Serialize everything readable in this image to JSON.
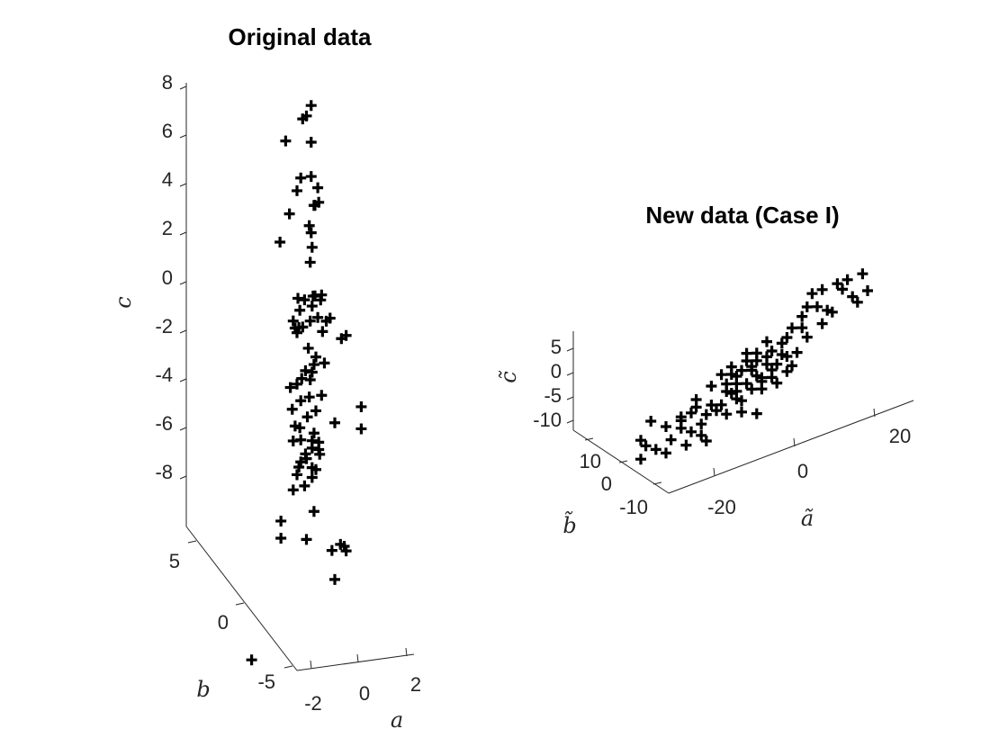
{
  "chart_data": [
    {
      "type": "scatter",
      "title": "Original data",
      "xlabel": "a",
      "ylabel": "b",
      "zlabel": "c",
      "view": "3d",
      "marker": "plus",
      "marker_color": "#000000",
      "grid": false,
      "z_ticks": [
        "8",
        "6",
        "4",
        "2",
        "0",
        "-2",
        "-4",
        "-6",
        "-8"
      ],
      "y_ticks": [
        "5",
        "0",
        "-5"
      ],
      "x_ticks": [
        "-2",
        "0",
        "2"
      ],
      "points_zb": [
        [
          7.3,
          1.5
        ],
        [
          6.9,
          1.0
        ],
        [
          6.8,
          0.6
        ],
        [
          5.8,
          1.5
        ],
        [
          6.0,
          -1.2
        ],
        [
          4.4,
          1.5
        ],
        [
          4.4,
          0.4
        ],
        [
          3.9,
          0.0
        ],
        [
          3.9,
          2.2
        ],
        [
          3.3,
          2.3
        ],
        [
          3.2,
          1.8
        ],
        [
          3.2,
          1.9
        ],
        [
          3.0,
          -0.8
        ],
        [
          2.4,
          1.3
        ],
        [
          2.1,
          1.5
        ],
        [
          1.9,
          -1.8
        ],
        [
          1.5,
          1.6
        ],
        [
          0.9,
          1.4
        ],
        [
          -0.5,
          0.1
        ],
        [
          -1.4,
          -0.4
        ],
        [
          -0.5,
          2.6
        ],
        [
          -0.5,
          1.9
        ],
        [
          -0.7,
          2.5
        ],
        [
          -0.5,
          1.7
        ],
        [
          -0.6,
          0.8
        ],
        [
          -0.9,
          1.6
        ],
        [
          -1.0,
          0.3
        ],
        [
          -1.4,
          2.2
        ],
        [
          -1.5,
          3.5
        ],
        [
          -1.6,
          3.1
        ],
        [
          -1.5,
          1.4
        ],
        [
          -1.7,
          0.6
        ],
        [
          -1.7,
          0.2
        ],
        [
          -1.7,
          -0.2
        ],
        [
          -1.9,
          0.0
        ],
        [
          -2.3,
          5.2
        ],
        [
          -2.4,
          4.7
        ],
        [
          -2.0,
          2.7
        ],
        [
          -2.6,
          1.2
        ],
        [
          -3.0,
          2.0
        ],
        [
          -3.3,
          2.9
        ],
        [
          -3.3,
          1.8
        ],
        [
          -3.6,
          1.6
        ],
        [
          -3.5,
          0.9
        ],
        [
          -3.8,
          0.5
        ],
        [
          -3.9,
          1.4
        ],
        [
          -4.0,
          0.0
        ],
        [
          -4.1,
          -0.7
        ],
        [
          -4.6,
          2.6
        ],
        [
          -4.7,
          0.4
        ],
        [
          -4.6,
          1.3
        ],
        [
          -5.0,
          -0.5
        ],
        [
          -5.2,
          2.0
        ],
        [
          -5.4,
          1.1
        ],
        [
          -5.7,
          -0.2
        ],
        [
          -5.8,
          0.3
        ],
        [
          -6.1,
          1.8
        ],
        [
          -6.3,
          0.4
        ],
        [
          -6.4,
          1.6
        ],
        [
          -5.8,
          4.0
        ],
        [
          -5.3,
          6.8
        ],
        [
          -6.2,
          6.8
        ],
        [
          -6.3,
          -0.4
        ],
        [
          -6.5,
          2.3
        ],
        [
          -6.7,
          1.6
        ],
        [
          -6.8,
          2.3
        ],
        [
          -7.0,
          2.4
        ],
        [
          -6.9,
          0.9
        ],
        [
          -7.2,
          0.4
        ],
        [
          -7.1,
          1.0
        ],
        [
          -7.4,
          0.2
        ],
        [
          -7.5,
          1.6
        ],
        [
          -7.7,
          0.0
        ],
        [
          -7.9,
          1.6
        ],
        [
          -8.2,
          0.8
        ],
        [
          -8.3,
          -0.4
        ],
        [
          -7.6,
          2.0
        ],
        [
          -9.3,
          1.8
        ],
        [
          -9.5,
          -1.7
        ],
        [
          -10.4,
          1.0
        ],
        [
          -10.2,
          -1.7
        ],
        [
          -10.8,
          4.6
        ],
        [
          -11.0,
          3.7
        ],
        [
          -11.1,
          5.2
        ],
        [
          -10.9,
          5.0
        ],
        [
          -12.2,
          4.0
        ],
        [
          -15.0,
          -4.8
        ]
      ]
    },
    {
      "type": "scatter",
      "title": "New data (Case I)",
      "xlabel": "ã",
      "ylabel": "b̃",
      "zlabel": "c̃",
      "view": "3d",
      "marker": "plus",
      "marker_color": "#000000",
      "grid": false,
      "z_ticks": [
        "5",
        "0",
        "-5",
        "-10"
      ],
      "y_ticks": [
        "10",
        "0",
        "-10"
      ],
      "x_ticks": [
        "-20",
        "0",
        "20"
      ],
      "points_ac": [
        [
          -18,
          -2
        ],
        [
          -20,
          -6
        ],
        [
          -15,
          -5
        ],
        [
          -19,
          -8
        ],
        [
          -14,
          -9
        ],
        [
          -12,
          -7
        ],
        [
          -17,
          -10
        ],
        [
          -11,
          -12
        ],
        [
          -15,
          -12
        ],
        [
          -10,
          -9
        ],
        [
          -8,
          -8
        ],
        [
          -6,
          -4
        ],
        [
          -12,
          -5
        ],
        [
          -9,
          -3
        ],
        [
          -7,
          -6
        ],
        [
          -5,
          -6
        ],
        [
          -3,
          -8
        ],
        [
          -4,
          -5
        ],
        [
          -2,
          -3
        ],
        [
          -1,
          -5
        ],
        [
          0,
          -6
        ],
        [
          -3,
          0
        ],
        [
          -1,
          -1
        ],
        [
          -2,
          2
        ],
        [
          -3,
          -2
        ],
        [
          -1,
          -3
        ],
        [
          1,
          -2
        ],
        [
          2,
          1
        ],
        [
          3,
          -1
        ],
        [
          4,
          -3
        ],
        [
          0,
          2
        ],
        [
          -6,
          1
        ],
        [
          -2,
          4
        ],
        [
          1,
          4
        ],
        [
          3,
          3
        ],
        [
          5,
          3
        ],
        [
          2,
          -4
        ],
        [
          4,
          -2
        ],
        [
          6,
          -3
        ],
        [
          2,
          2
        ],
        [
          5,
          1
        ],
        [
          7,
          0
        ],
        [
          -1,
          1
        ],
        [
          3,
          5
        ],
        [
          6,
          4
        ],
        [
          8,
          5
        ],
        [
          4,
          -5
        ],
        [
          7,
          -5
        ],
        [
          1,
          6
        ],
        [
          5,
          7
        ],
        [
          9,
          6
        ],
        [
          6,
          -1
        ],
        [
          9,
          1
        ],
        [
          8,
          2
        ],
        [
          10,
          -2
        ],
        [
          11,
          1
        ],
        [
          -9,
          -1
        ],
        [
          -8,
          -11
        ],
        [
          -10,
          -4
        ],
        [
          -12,
          -4
        ],
        [
          12,
          7
        ],
        [
          13,
          4
        ],
        [
          12,
          10
        ],
        [
          15,
          11
        ],
        [
          16,
          6
        ],
        [
          17,
          9
        ],
        [
          14,
          15
        ],
        [
          19,
          15
        ],
        [
          16,
          15
        ],
        [
          21,
          15
        ],
        [
          24,
          15
        ],
        [
          22,
          10
        ],
        [
          25,
          10
        ],
        [
          20,
          13
        ],
        [
          18,
          8
        ],
        [
          23,
          8
        ],
        [
          13,
          12
        ],
        [
          10,
          8
        ],
        [
          0,
          -9
        ],
        [
          3,
          -11
        ],
        [
          -20,
          -11
        ],
        [
          -7,
          -13
        ],
        [
          9,
          -3
        ],
        [
          -4,
          3
        ]
      ]
    }
  ]
}
